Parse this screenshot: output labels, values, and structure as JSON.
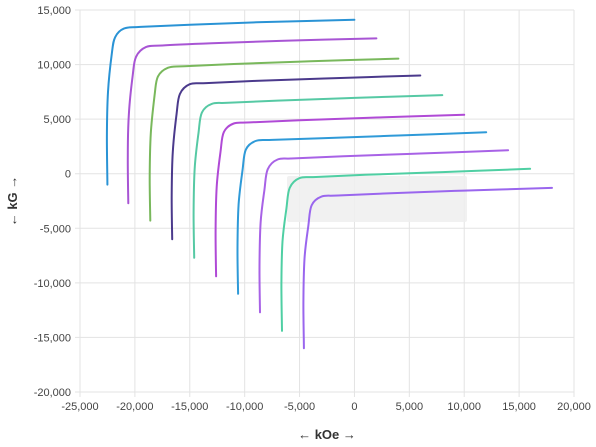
{
  "chart_data": {
    "type": "line",
    "xlabel": "← kOe →",
    "ylabel": "← kG →",
    "xlim": [
      -25000,
      20000
    ],
    "ylim": [
      -20000,
      15000
    ],
    "x_ticks": [
      -25000,
      -20000,
      -15000,
      -10000,
      -5000,
      0,
      5000,
      10000,
      15000,
      20000
    ],
    "y_ticks": [
      -20000,
      -15000,
      -10000,
      -5000,
      0,
      5000,
      10000,
      15000
    ],
    "x_tick_labels": [
      "-25,000",
      "-20,000",
      "-15,000",
      "-10,000",
      "-5,000",
      "0",
      "5,000",
      "10,000",
      "15,000",
      "20,000"
    ],
    "y_tick_labels": [
      "-20,000",
      "-15,000",
      "-10,000",
      "-5,000",
      "0",
      "5,000",
      "10,000",
      "15,000"
    ],
    "grid": true,
    "legend": "none",
    "series": [
      {
        "color": "#2a93d5",
        "x": [
          -22500,
          -22550,
          -22450,
          -22100,
          -21800,
          -21000,
          -19500,
          -15000,
          -8000,
          0
        ],
        "y": [
          -1000,
          3500,
          7500,
          11000,
          12500,
          13300,
          13450,
          13650,
          13900,
          14100
        ]
      },
      {
        "color": "#a855d4",
        "x": [
          -20600,
          -20650,
          -20550,
          -20200,
          -19900,
          -19000,
          -17500,
          -13000,
          -6000,
          2000
        ],
        "y": [
          -2700,
          1500,
          5500,
          9000,
          10700,
          11600,
          11750,
          11950,
          12200,
          12400
        ]
      },
      {
        "color": "#79b85c",
        "x": [
          -18600,
          -18650,
          -18550,
          -18200,
          -17900,
          -17000,
          -15500,
          -11000,
          -4000,
          4000
        ],
        "y": [
          -4300,
          -200,
          3700,
          7200,
          8900,
          9700,
          9850,
          10050,
          10300,
          10550
        ]
      },
      {
        "color": "#4b3a8c",
        "x": [
          -16600,
          -16650,
          -16550,
          -16200,
          -15900,
          -15000,
          -13500,
          -9000,
          -2000,
          6000
        ],
        "y": [
          -6000,
          -2000,
          2000,
          5500,
          7300,
          8200,
          8300,
          8500,
          8750,
          9000
        ]
      },
      {
        "color": "#56c9a4",
        "x": [
          -14600,
          -14650,
          -14550,
          -14200,
          -13900,
          -13000,
          -11500,
          -7000,
          0,
          8000
        ],
        "y": [
          -7700,
          -3500,
          500,
          3800,
          5600,
          6400,
          6500,
          6700,
          6950,
          7200
        ]
      },
      {
        "color": "#b04ad6",
        "x": [
          -12600,
          -12650,
          -12550,
          -12200,
          -11900,
          -11000,
          -9500,
          -5000,
          2000,
          10000
        ],
        "y": [
          -9400,
          -5200,
          -1200,
          2000,
          3800,
          4600,
          4700,
          4900,
          5150,
          5400
        ]
      },
      {
        "color": "#2f9ad8",
        "x": [
          -10600,
          -10650,
          -10550,
          -10200,
          -9900,
          -9000,
          -7500,
          -3000,
          4000,
          12000
        ],
        "y": [
          -11000,
          -6800,
          -2800,
          300,
          2200,
          3000,
          3100,
          3250,
          3500,
          3800
        ]
      },
      {
        "color": "#a862e6",
        "x": [
          -8600,
          -8650,
          -8550,
          -8200,
          -7900,
          -7000,
          -5500,
          -1000,
          6000,
          14000
        ],
        "y": [
          -12700,
          -8500,
          -4500,
          -1500,
          400,
          1300,
          1400,
          1600,
          1850,
          2150
        ]
      },
      {
        "color": "#4fcfa3",
        "x": [
          -6600,
          -6650,
          -6550,
          -6200,
          -5900,
          -5000,
          -3500,
          1000,
          8000,
          16000
        ],
        "y": [
          -14400,
          -10200,
          -6200,
          -3200,
          -1300,
          -400,
          -300,
          -100,
          150,
          450
        ]
      },
      {
        "color": "#9a66ee",
        "x": [
          -4600,
          -4650,
          -4550,
          -4200,
          -3900,
          -3000,
          -1500,
          3000,
          10000,
          18000
        ],
        "y": [
          -16000,
          -11800,
          -7800,
          -4800,
          -2900,
          -2100,
          -2000,
          -1800,
          -1550,
          -1300
        ]
      }
    ]
  }
}
